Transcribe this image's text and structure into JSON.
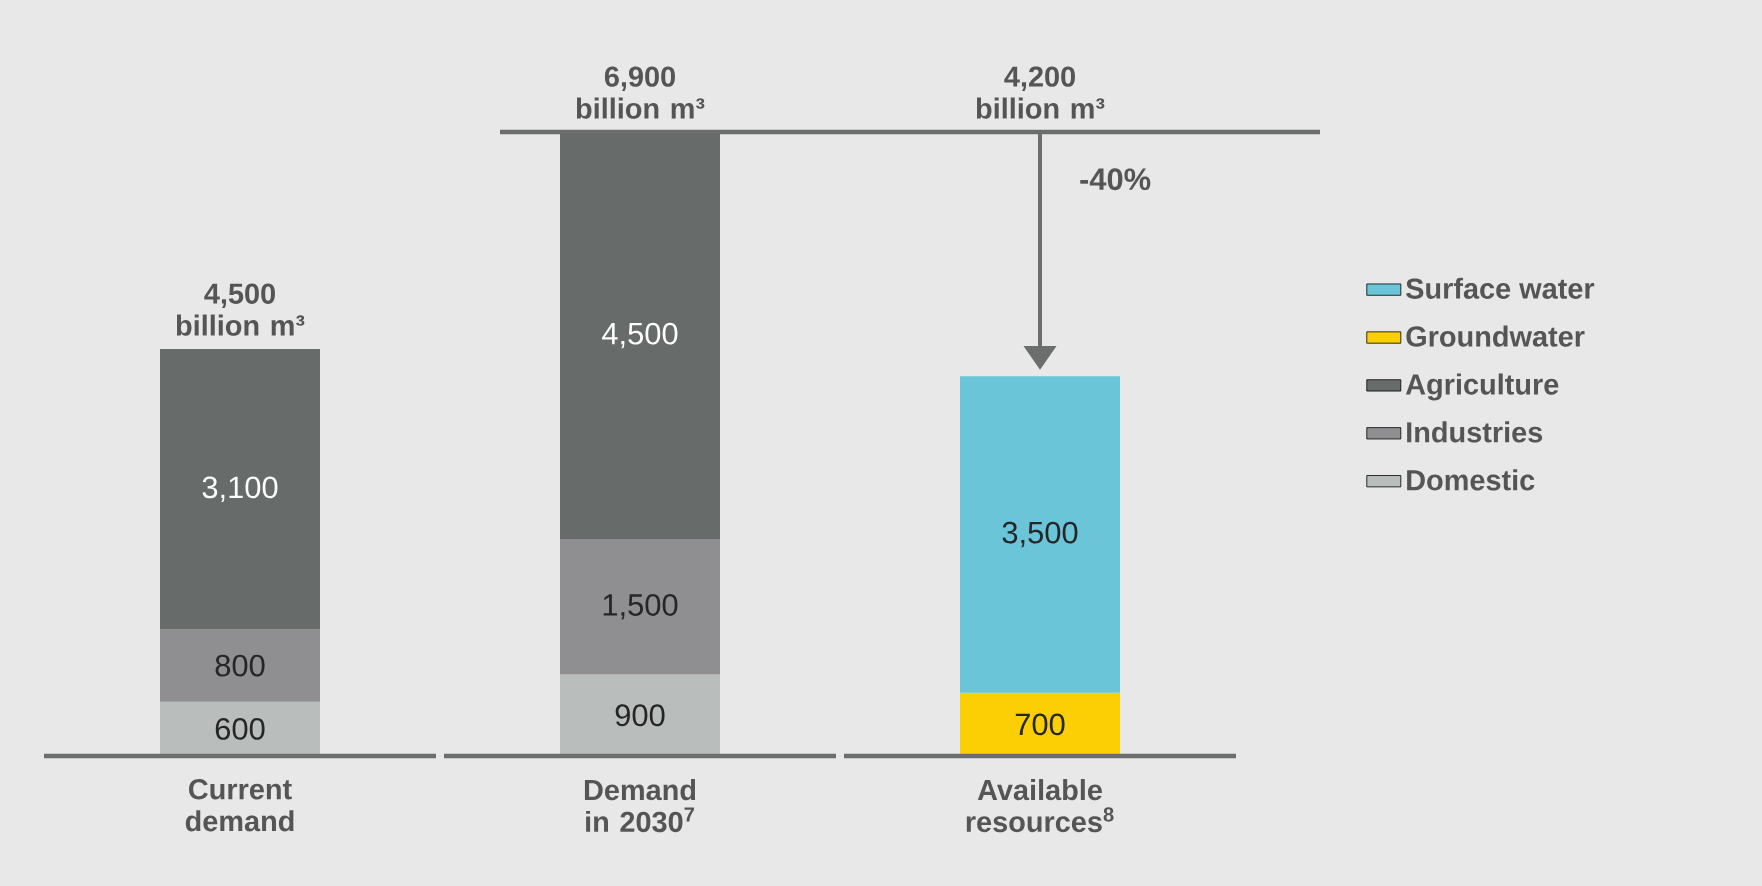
{
  "chart_data": {
    "type": "bar",
    "stacked": true,
    "categories": [
      "Current demand",
      "Demand in 2030$^{7}$",
      "Available resources$^{8}$"
    ],
    "series": [
      {
        "name": "Domestic",
        "color": "#b9bdbb",
        "values": [
          600,
          900,
          null
        ],
        "value_labels": [
          "600",
          "900",
          null
        ]
      },
      {
        "name": "Industries",
        "color": "#8f8f92",
        "values": [
          800,
          1500,
          null
        ],
        "value_labels": [
          "800",
          "1,500",
          null
        ]
      },
      {
        "name": "Agriculture",
        "color": "#676b69",
        "values": [
          3100,
          4500,
          null
        ],
        "value_labels": [
          "3,100",
          "4,500",
          null
        ]
      },
      {
        "name": "Groundwater",
        "color": "#fccf04",
        "values": [
          null,
          null,
          700
        ],
        "value_labels": [
          null,
          null,
          "700"
        ]
      },
      {
        "name": "Surface water",
        "color": "#6ac5d9",
        "values": [
          null,
          null,
          3500
        ],
        "value_labels": [
          null,
          null,
          "3,500"
        ]
      }
    ],
    "totals": [
      "4,500 billion m³",
      "6,900 billion m³",
      null
    ],
    "annotations": [
      "-40%",
      "4,200 billion m³"
    ],
    "legend": "right"
  }
}
